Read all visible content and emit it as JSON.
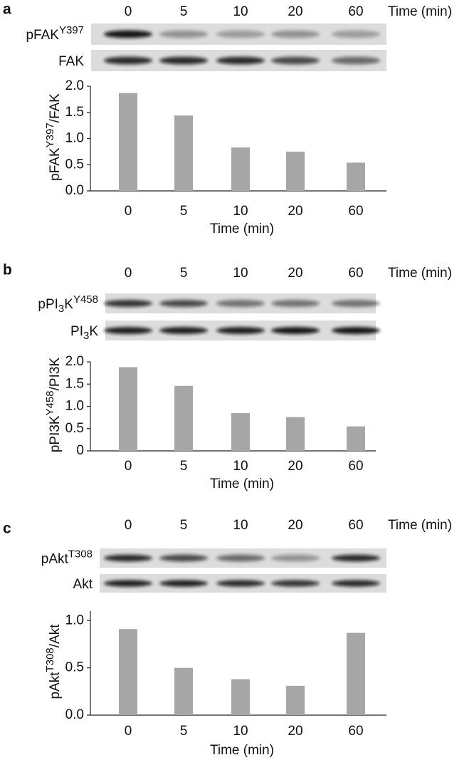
{
  "chart_data": [
    {
      "type": "bar",
      "panel": "a",
      "lane_header": "Time (min)",
      "blots": [
        [
          {
            "text": "pFAK"
          },
          {
            "sup": "Y397"
          }
        ],
        [
          {
            "text": "FAK"
          }
        ]
      ],
      "categories": [
        "0",
        "5",
        "10",
        "20",
        "60"
      ],
      "values": [
        1.87,
        1.44,
        0.83,
        0.75,
        0.54
      ],
      "color": "#a6a6a6",
      "ylim": [
        0,
        2
      ],
      "yticks": [
        {
          "value": 0,
          "label": "0.0"
        },
        {
          "value": 0.5,
          "label": "0.5"
        },
        {
          "value": 1,
          "label": "1.0"
        },
        {
          "value": 1.5,
          "label": "1.5"
        },
        {
          "value": 2,
          "label": "2.0"
        }
      ],
      "y_label": [
        {
          "text": "pFAK"
        },
        {
          "sup": "Y397"
        },
        {
          "text": "/FAK"
        }
      ],
      "x_label": "Time (min)"
    },
    {
      "type": "bar",
      "panel": "b",
      "lane_header": "Time (min)",
      "blots": [
        [
          {
            "text": "pPI"
          },
          {
            "sub": "3"
          },
          {
            "text": "K"
          },
          {
            "sup": "Y458"
          }
        ],
        [
          {
            "text": "PI"
          },
          {
            "sub": "3"
          },
          {
            "text": "K"
          }
        ]
      ],
      "categories": [
        "0",
        "5",
        "10",
        "20",
        "60"
      ],
      "values": [
        1.88,
        1.46,
        0.85,
        0.76,
        0.55
      ],
      "color": "#a6a6a6",
      "ylim": [
        0,
        2
      ],
      "yticks": [
        {
          "value": 0,
          "label": "0"
        },
        {
          "value": 0.5,
          "label": "0.5"
        },
        {
          "value": 1,
          "label": "1.0"
        },
        {
          "value": 1.5,
          "label": "1.5"
        },
        {
          "value": 2,
          "label": "2.0"
        }
      ],
      "y_label": [
        {
          "text": "pPI3K"
        },
        {
          "sup": "Y458"
        },
        {
          "text": "/PI3K"
        }
      ],
      "x_label": "Time (min)"
    },
    {
      "type": "bar",
      "panel": "c",
      "lane_header": "Time (min)",
      "blots": [
        [
          {
            "text": "pAkt"
          },
          {
            "sup": "T308"
          }
        ],
        [
          {
            "text": "Akt"
          }
        ]
      ],
      "categories": [
        "0",
        "5",
        "10",
        "20",
        "60"
      ],
      "values": [
        0.91,
        0.5,
        0.38,
        0.31,
        0.87
      ],
      "color": "#a6a6a6",
      "ylim": [
        0,
        1.1
      ],
      "yticks": [
        {
          "value": 0,
          "label": "0.0"
        },
        {
          "value": 0.5,
          "label": "0.5"
        },
        {
          "value": 1,
          "label": "1.0"
        }
      ],
      "y_label": [
        {
          "text": "pAkt"
        },
        {
          "sup": "T308"
        },
        {
          "text": "/Akt"
        }
      ],
      "x_label": "Time (min)"
    }
  ]
}
